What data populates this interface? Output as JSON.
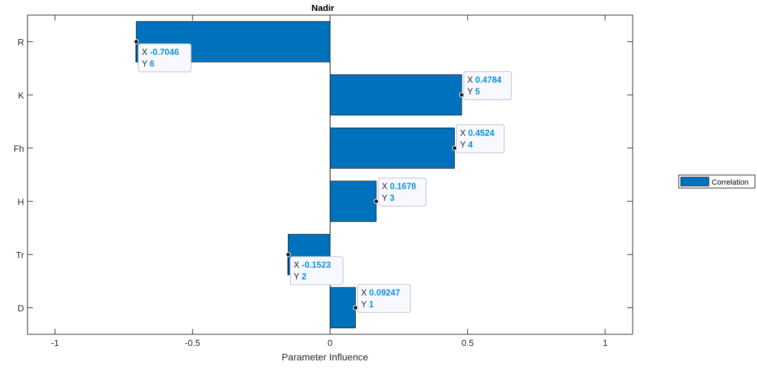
{
  "chart_data": {
    "type": "bar",
    "orientation": "horizontal",
    "title": "Nadir",
    "xlabel": "Parameter Influence",
    "ylabel": "",
    "xlim": [
      -1.1,
      1.1
    ],
    "ylim": [
      0.5,
      6.5
    ],
    "x_ticks": [
      -1,
      -0.5,
      0,
      0.5,
      1
    ],
    "x_tick_labels": [
      "-1",
      "-0.5",
      "0",
      "0.5",
      "1"
    ],
    "categories": [
      "D",
      "Tr",
      "H",
      "Fh",
      "K",
      "R"
    ],
    "series": [
      {
        "name": "Correlation",
        "values": [
          0.09247,
          -0.1523,
          0.1678,
          0.4524,
          0.4784,
          -0.7046
        ]
      }
    ],
    "datatips": [
      {
        "x_label": "X",
        "x_value": "0.09247",
        "y_label": "Y",
        "y_value": "1"
      },
      {
        "x_label": "X",
        "x_value": "-0.1523",
        "y_label": "Y",
        "y_value": "2"
      },
      {
        "x_label": "X",
        "x_value": "0.1678",
        "y_label": "Y",
        "y_value": "3"
      },
      {
        "x_label": "X",
        "x_value": "0.4524",
        "y_label": "Y",
        "y_value": "4"
      },
      {
        "x_label": "X",
        "x_value": "0.4784",
        "y_label": "Y",
        "y_value": "5"
      },
      {
        "x_label": "X",
        "x_value": "-0.7046",
        "y_label": "Y",
        "y_value": "6"
      }
    ],
    "legend": {
      "placement": "outside-right",
      "entries": [
        "Correlation"
      ]
    },
    "grid": false,
    "colors": {
      "bar": "#0072bd",
      "datatip_value": "#0a8fd8",
      "axis": "#262626"
    }
  }
}
